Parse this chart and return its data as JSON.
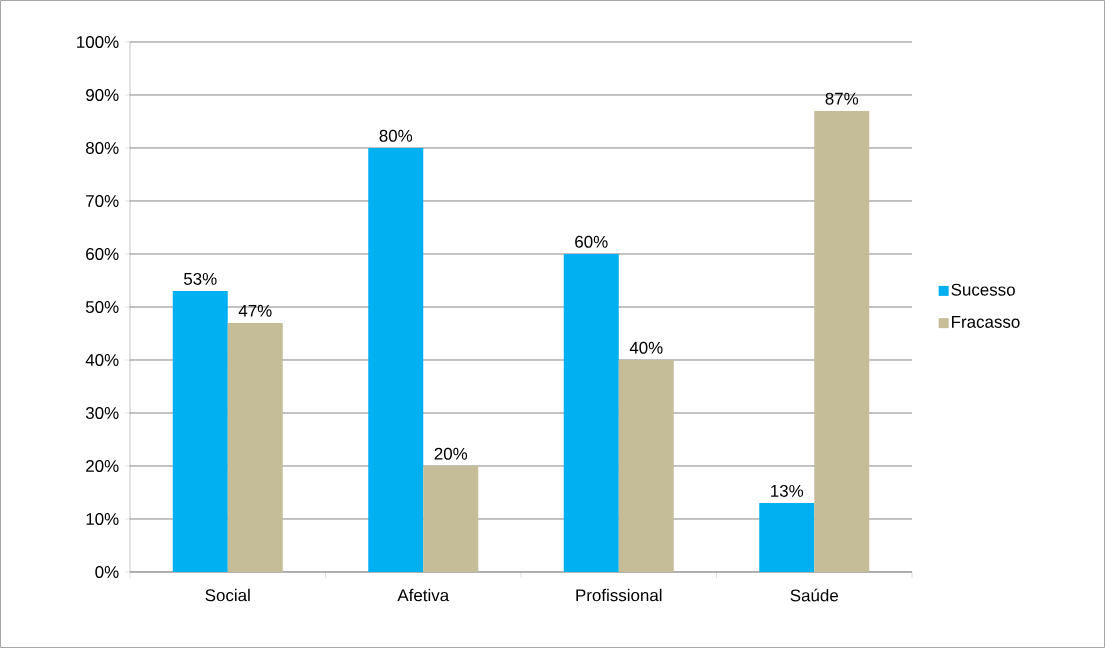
{
  "chart_data": {
    "type": "bar",
    "categories": [
      "Social",
      "Afetiva",
      "Profissional",
      "Saúde"
    ],
    "series": [
      {
        "name": "Sucesso",
        "color": "#00b0f0",
        "values": [
          53,
          80,
          60,
          13
        ],
        "value_labels": [
          "53%",
          "80%",
          "60%",
          "13%"
        ]
      },
      {
        "name": "Fracasso",
        "color": "#c4bd97",
        "values": [
          47,
          20,
          40,
          87
        ],
        "value_labels": [
          "47%",
          "20%",
          "40%",
          "87%"
        ]
      }
    ],
    "ylim": [
      0,
      100
    ],
    "yticks": [
      {
        "value": 0,
        "label": "0%"
      },
      {
        "value": 10,
        "label": "10%"
      },
      {
        "value": 20,
        "label": "20%"
      },
      {
        "value": 30,
        "label": "30%"
      },
      {
        "value": 40,
        "label": "40%"
      },
      {
        "value": 50,
        "label": "50%"
      },
      {
        "value": 60,
        "label": "60%"
      },
      {
        "value": 70,
        "label": "70%"
      },
      {
        "value": 80,
        "label": "80%"
      },
      {
        "value": 90,
        "label": "90%"
      },
      {
        "value": 100,
        "label": "100%"
      }
    ],
    "grid": "y",
    "legend": "right"
  }
}
